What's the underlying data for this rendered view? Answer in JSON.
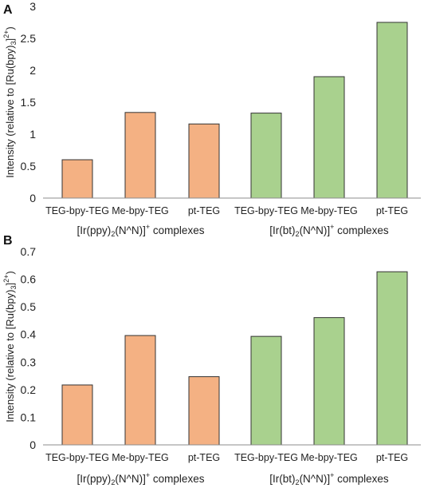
{
  "colors": {
    "ppy": "#F4B183",
    "bt": "#A9D18E",
    "axis": "#8c8c8c",
    "bar_stroke": "#333333"
  },
  "chart_data": [
    {
      "type": "bar",
      "panel": "A",
      "categories": [
        "TEG-bpy-TEG",
        "Me-bpy-TEG",
        "pt-TEG",
        "TEG-bpy-TEG",
        "Me-bpy-TEG",
        "pt-TEG"
      ],
      "values": [
        0.6,
        1.34,
        1.16,
        1.33,
        1.9,
        2.75
      ],
      "groups": [
        {
          "prefix": "[Ir(ppy)",
          "sub": "2",
          "mid": "(N^N)]",
          "sup": "+",
          "suffix": " complexes",
          "color": "#F4B183",
          "indices": [
            0,
            1,
            2
          ]
        },
        {
          "prefix": "[Ir(bt)",
          "sub": "2",
          "mid": "(N^N)]",
          "sup": "+",
          "suffix": " complexes",
          "color": "#A9D18E",
          "indices": [
            3,
            4,
            5
          ]
        }
      ],
      "ylabel": {
        "main": "Intensity (relative to [Ru(bpy)",
        "sub": "3",
        "close": "]",
        "sup": "2+",
        "end": ")"
      },
      "ylim": [
        0,
        3
      ],
      "yticks": [
        "0",
        "0.5",
        "1",
        "1.5",
        "2",
        "2.5",
        "3"
      ],
      "ytick_values": [
        0,
        0.5,
        1,
        1.5,
        2,
        2.5,
        3
      ],
      "grid": false
    },
    {
      "type": "bar",
      "panel": "B",
      "categories": [
        "TEG-bpy-TEG",
        "Me-bpy-TEG",
        "pt-TEG",
        "TEG-bpy-TEG",
        "Me-bpy-TEG",
        "pt-TEG"
      ],
      "values": [
        0.217,
        0.396,
        0.247,
        0.393,
        0.461,
        0.627
      ],
      "groups": [
        {
          "prefix": "[Ir(ppy)",
          "sub": "2",
          "mid": "(N^N)]",
          "sup": "+",
          "suffix": " complexes",
          "color": "#F4B183",
          "indices": [
            0,
            1,
            2
          ]
        },
        {
          "prefix": "[Ir(bt)",
          "sub": "2",
          "mid": "(N^N)]",
          "sup": "+",
          "suffix": " complexes",
          "color": "#A9D18E",
          "indices": [
            3,
            4,
            5
          ]
        }
      ],
      "ylabel": {
        "main": "Intensity (relative to [Ru(bpy)",
        "sub": "3",
        "close": "]",
        "sup": "2+",
        "end": ")"
      },
      "ylim": [
        0,
        0.7
      ],
      "yticks": [
        "0",
        "0.1",
        "0.2",
        "0.3",
        "0.4",
        "0.5",
        "0.6",
        "0.7"
      ],
      "ytick_values": [
        0,
        0.1,
        0.2,
        0.3,
        0.4,
        0.5,
        0.6,
        0.7
      ],
      "grid": false
    }
  ]
}
